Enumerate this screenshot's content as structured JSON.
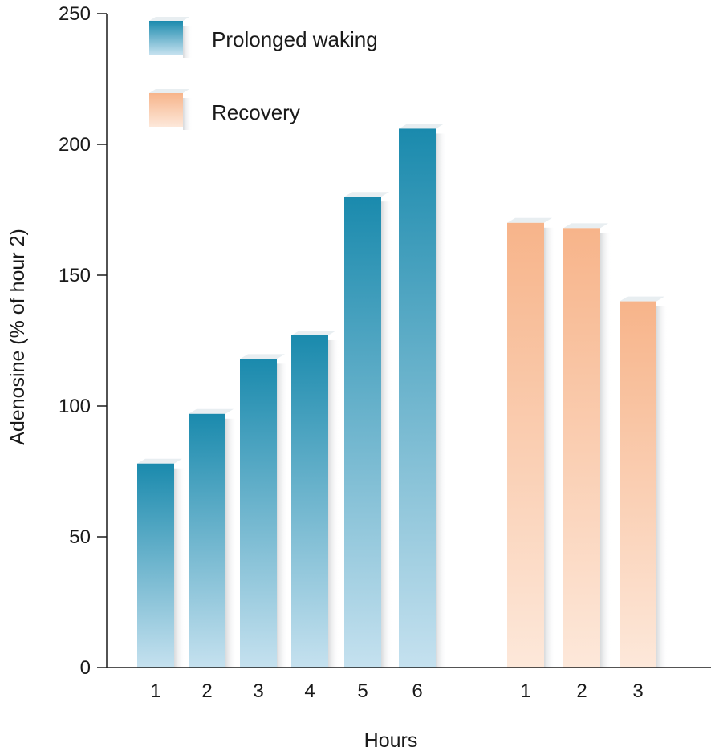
{
  "chart_data": {
    "type": "bar",
    "ylabel": "Adenosine (% of hour 2)",
    "xlabel": "Hours",
    "ylim": [
      0,
      250
    ],
    "yticks": [
      0,
      50,
      100,
      150,
      200,
      250
    ],
    "legend_position": "top-left",
    "series": [
      {
        "name": "Prolonged waking",
        "color": "#1a8aad",
        "color_light": "#c5e1ef",
        "categories": [
          "1",
          "2",
          "3",
          "4",
          "5",
          "6"
        ],
        "values": [
          78,
          97,
          118,
          127,
          180,
          206
        ]
      },
      {
        "name": "Recovery",
        "color": "#f7b48a",
        "color_light": "#fde8da",
        "categories": [
          "1",
          "2",
          "3"
        ],
        "values": [
          170,
          168,
          140
        ]
      }
    ]
  }
}
